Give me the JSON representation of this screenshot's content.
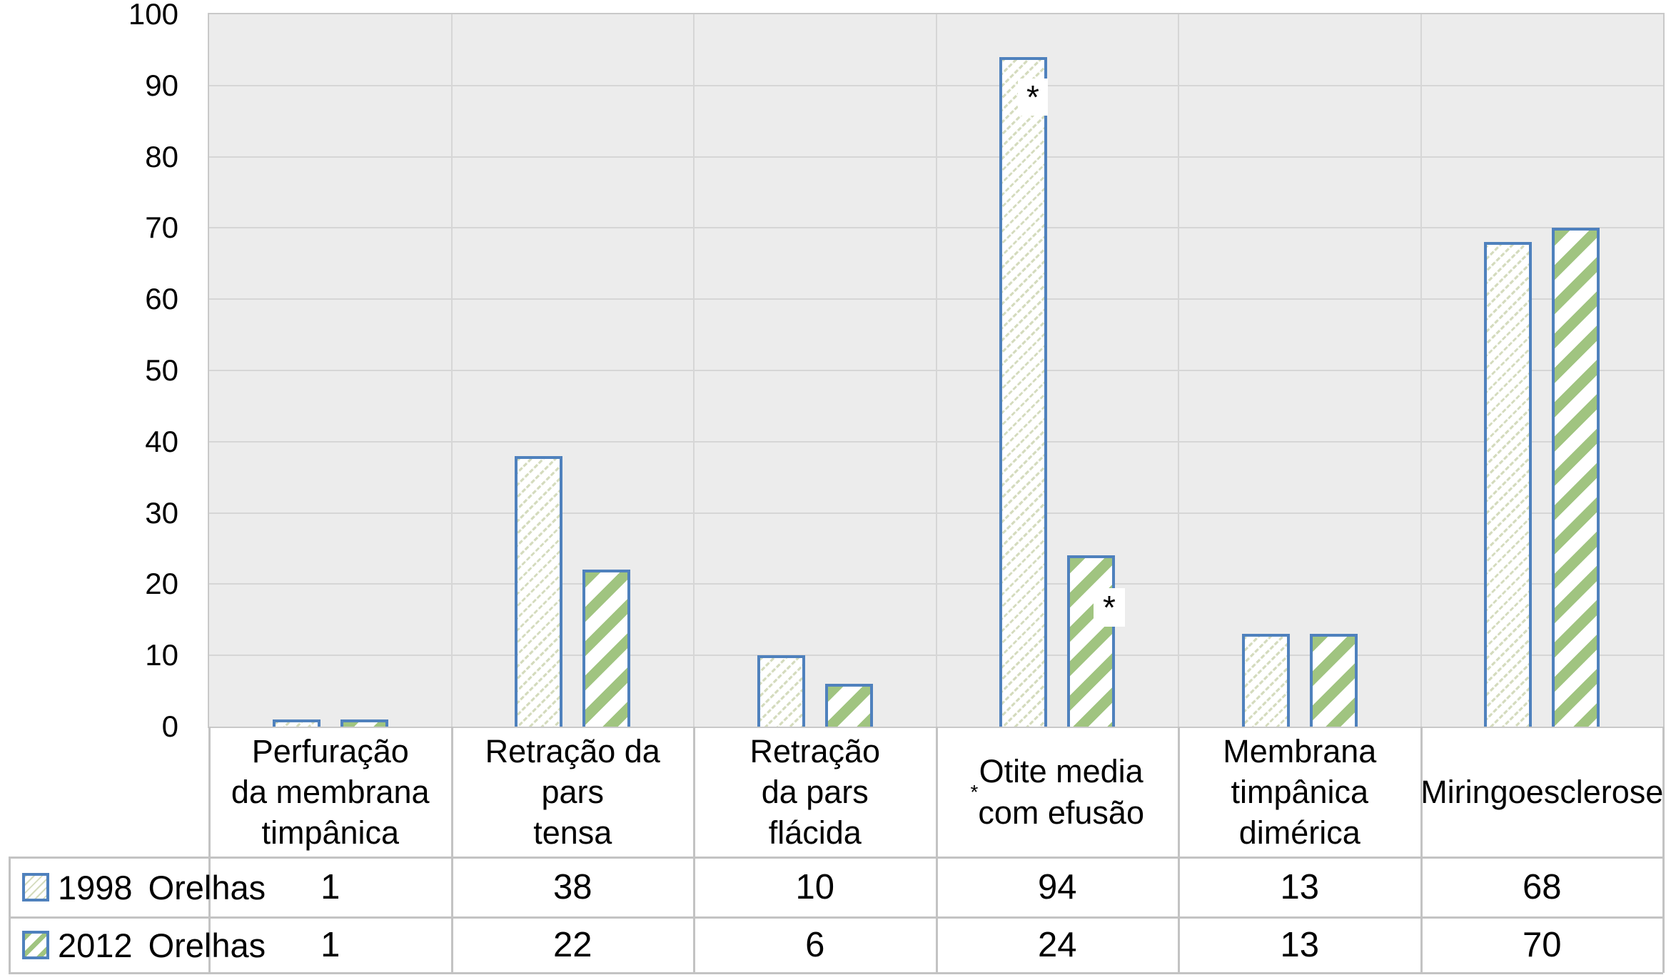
{
  "chart_data": {
    "type": "bar",
    "title": "",
    "xlabel": "",
    "ylabel": "",
    "categories": [
      "Perfuração\nda membrana\ntimpânica",
      "Retração da\npars\ntensa",
      "Retração\nda pars\nflácida",
      "*Otite media\ncom efusão",
      "Membrana\ntimpânica\ndimérica",
      "Miringoesclerose"
    ],
    "series": [
      {
        "name": "1998",
        "unit_label": "Orelhas",
        "values": [
          1,
          38,
          10,
          94,
          13,
          68
        ],
        "pattern": "fine-diagonal-dot-hatch"
      },
      {
        "name": "2012",
        "unit_label": "Orelhas",
        "values": [
          1,
          22,
          6,
          24,
          13,
          70
        ],
        "pattern": "bold-diagonal-green-stripe"
      }
    ],
    "ylim": [
      0,
      100
    ],
    "yticks": [
      0,
      10,
      20,
      30,
      40,
      50,
      60,
      70,
      80,
      90,
      100
    ],
    "grid": true,
    "legend_position": "table-left-bottom",
    "annotations": [
      {
        "symbol": "*",
        "series": "1998",
        "category_index": 3,
        "note": "inside top of 94 bar"
      },
      {
        "symbol": "*",
        "series": "2012",
        "category_index": 3,
        "note": "right edge of 24 bar"
      }
    ],
    "colors": {
      "bar_border": "#4f81bd",
      "stripe_green": "#a0c480",
      "hatch_light": "#d4dbbd",
      "plot_background": "#ececec",
      "plot_border": "#c9c9c9",
      "gridline": "#d6d6d6",
      "table_line": "#c3c3c3",
      "text": "#000000"
    }
  }
}
